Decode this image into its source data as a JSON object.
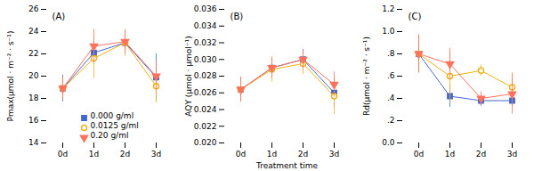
{
  "chart_data": [
    {
      "type": "line",
      "annotation": "(A)",
      "ylabel": "Pmax(μmol · m⁻² · s⁻¹)",
      "categories": [
        "0d",
        "1d",
        "2d",
        "3d"
      ],
      "ylim": [
        14,
        26
      ],
      "yticks": [
        14,
        16,
        18,
        20,
        22,
        24,
        26
      ],
      "legend": "lower left",
      "series": [
        {
          "name": "0.000 g/ml",
          "marker": "square",
          "values": [
            18.9,
            22.1,
            23.0,
            19.9
          ],
          "yerr": [
            1.2,
            1.0,
            1.1,
            2.1
          ]
        },
        {
          "name": "0.0125 g/ml",
          "marker": "circle-open",
          "values": [
            18.9,
            21.6,
            23.0,
            19.1
          ],
          "yerr": [
            1.0,
            1.8,
            1.2,
            1.5
          ]
        },
        {
          "name": "0.20 g/ml",
          "marker": "triangle-down",
          "values": [
            18.9,
            22.7,
            23.1,
            20.0
          ],
          "yerr": [
            1.0,
            1.5,
            1.0,
            1.3
          ]
        }
      ]
    },
    {
      "type": "line",
      "annotation": "(B)",
      "ylabel": "AQY (μmol · μmol⁻¹)",
      "xlabel": "Treatment time",
      "categories": [
        "0d",
        "1d",
        "2d",
        "3d"
      ],
      "ylim": [
        0.02,
        0.036
      ],
      "yticks": [
        {
          "value": 0.02,
          "label": "0.020"
        },
        {
          "value": 0.022,
          "label": "0.022"
        },
        {
          "value": 0.024,
          "label": "0.024"
        },
        {
          "value": 0.026,
          "label": "0.026"
        },
        {
          "value": 0.028,
          "label": "0.028"
        },
        {
          "value": 0.03,
          "label": "0.030"
        },
        {
          "value": 0.032,
          "label": "0.032"
        },
        {
          "value": 0.034,
          "label": "0.034"
        },
        {
          "value": 0.036,
          "label": "0.036"
        }
      ],
      "series": [
        {
          "name": "0.000 g/ml",
          "marker": "square",
          "values": [
            0.0264,
            0.029,
            0.03,
            0.026
          ],
          "yerr": [
            0.0015,
            0.0012,
            0.0012,
            0.0018
          ]
        },
        {
          "name": "0.0125 g/ml",
          "marker": "circle-open",
          "values": [
            0.0264,
            0.0288,
            0.0295,
            0.0256
          ],
          "yerr": [
            0.0015,
            0.0015,
            0.0013,
            0.0022
          ]
        },
        {
          "name": "0.20 g/ml",
          "marker": "triangle-down",
          "values": [
            0.0264,
            0.029,
            0.03,
            0.027
          ],
          "yerr": [
            0.0015,
            0.0012,
            0.001,
            0.0015
          ]
        }
      ]
    },
    {
      "type": "line",
      "annotation": "(C)",
      "ylabel": "Rd(μmol · m⁻² · s⁻¹)",
      "categories": [
        "0d",
        "1d",
        "2d",
        "3d"
      ],
      "ylim": [
        0.0,
        1.2
      ],
      "yticks": [
        {
          "value": 0.0,
          "label": "0.0"
        },
        {
          "value": 0.2,
          "label": ".2"
        },
        {
          "value": 0.4,
          "label": ".4"
        },
        {
          "value": 0.6,
          "label": ".6"
        },
        {
          "value": 0.8,
          "label": ".8"
        },
        {
          "value": 1.0,
          "label": "1.0"
        },
        1.2
      ],
      "series": [
        {
          "name": "0.000 g/ml",
          "marker": "square",
          "values": [
            0.8,
            0.42,
            0.38,
            0.38
          ],
          "yerr": [
            0.17,
            0.1,
            0.05,
            0.06
          ]
        },
        {
          "name": "0.0125 g/ml",
          "marker": "circle-open",
          "values": [
            0.8,
            0.6,
            0.65,
            0.5
          ],
          "yerr": [
            0.17,
            0.22,
            0.05,
            0.13
          ]
        },
        {
          "name": "0.20 g/ml",
          "marker": "triangle-down",
          "values": [
            0.8,
            0.71,
            0.4,
            0.44
          ],
          "yerr": [
            0.17,
            0.14,
            0.06,
            0.18
          ]
        }
      ]
    }
  ]
}
